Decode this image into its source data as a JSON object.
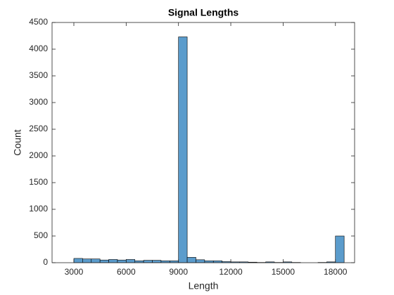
{
  "chart_data": {
    "type": "histogram",
    "title": "Signal Lengths",
    "x_label": "Length",
    "y_label": "Count",
    "bins": [
      3000,
      3500,
      4000,
      4500,
      5000,
      5500,
      6000,
      6500,
      7000,
      7500,
      8000,
      8500,
      9000,
      9500,
      10000,
      10500,
      11000,
      11500,
      12000,
      12500,
      13000,
      13500,
      14000,
      14500,
      15000,
      15500,
      16000,
      16500,
      17000,
      17500,
      18000,
      18500
    ],
    "values": [
      80,
      70,
      70,
      50,
      60,
      50,
      60,
      35,
      45,
      45,
      35,
      35,
      4230,
      100,
      55,
      35,
      35,
      20,
      15,
      15,
      10,
      5,
      15,
      5,
      15,
      5,
      0,
      0,
      5,
      15,
      500
    ],
    "color": "#5b9ccc",
    "xlim": [
      1750,
      19100
    ],
    "xticks": [
      3000,
      6000,
      9000,
      12000,
      15000,
      18000
    ],
    "ylim": [
      0,
      4500
    ],
    "yticks": [
      0,
      500,
      1000,
      1500,
      2000,
      2500,
      3000,
      3500,
      4000,
      4500
    ]
  }
}
